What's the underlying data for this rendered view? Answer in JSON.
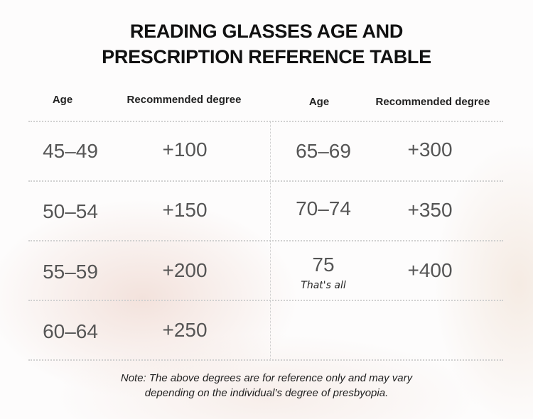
{
  "title": {
    "line1": "READING GLASSES AGE AND",
    "line2": "PRESCRIPTION REFERENCE TABLE"
  },
  "headers": {
    "age": "Age",
    "degree": "Recommended degree"
  },
  "left_rows": [
    {
      "age": "45–49",
      "degree": "+100"
    },
    {
      "age": "50–54",
      "degree": "+150"
    },
    {
      "age": "55–59",
      "degree": "+200"
    },
    {
      "age": "60–64",
      "degree": "+250"
    }
  ],
  "right_rows": [
    {
      "age": "65–69",
      "degree": "+300"
    },
    {
      "age": "70–74",
      "degree": "+350"
    },
    {
      "age": "75",
      "note": "That's all",
      "degree": "+400"
    }
  ],
  "note": {
    "line1": "Note: The above degrees are for reference only and may vary",
    "line2": "depending on the individual’s degree of presbyopia."
  }
}
